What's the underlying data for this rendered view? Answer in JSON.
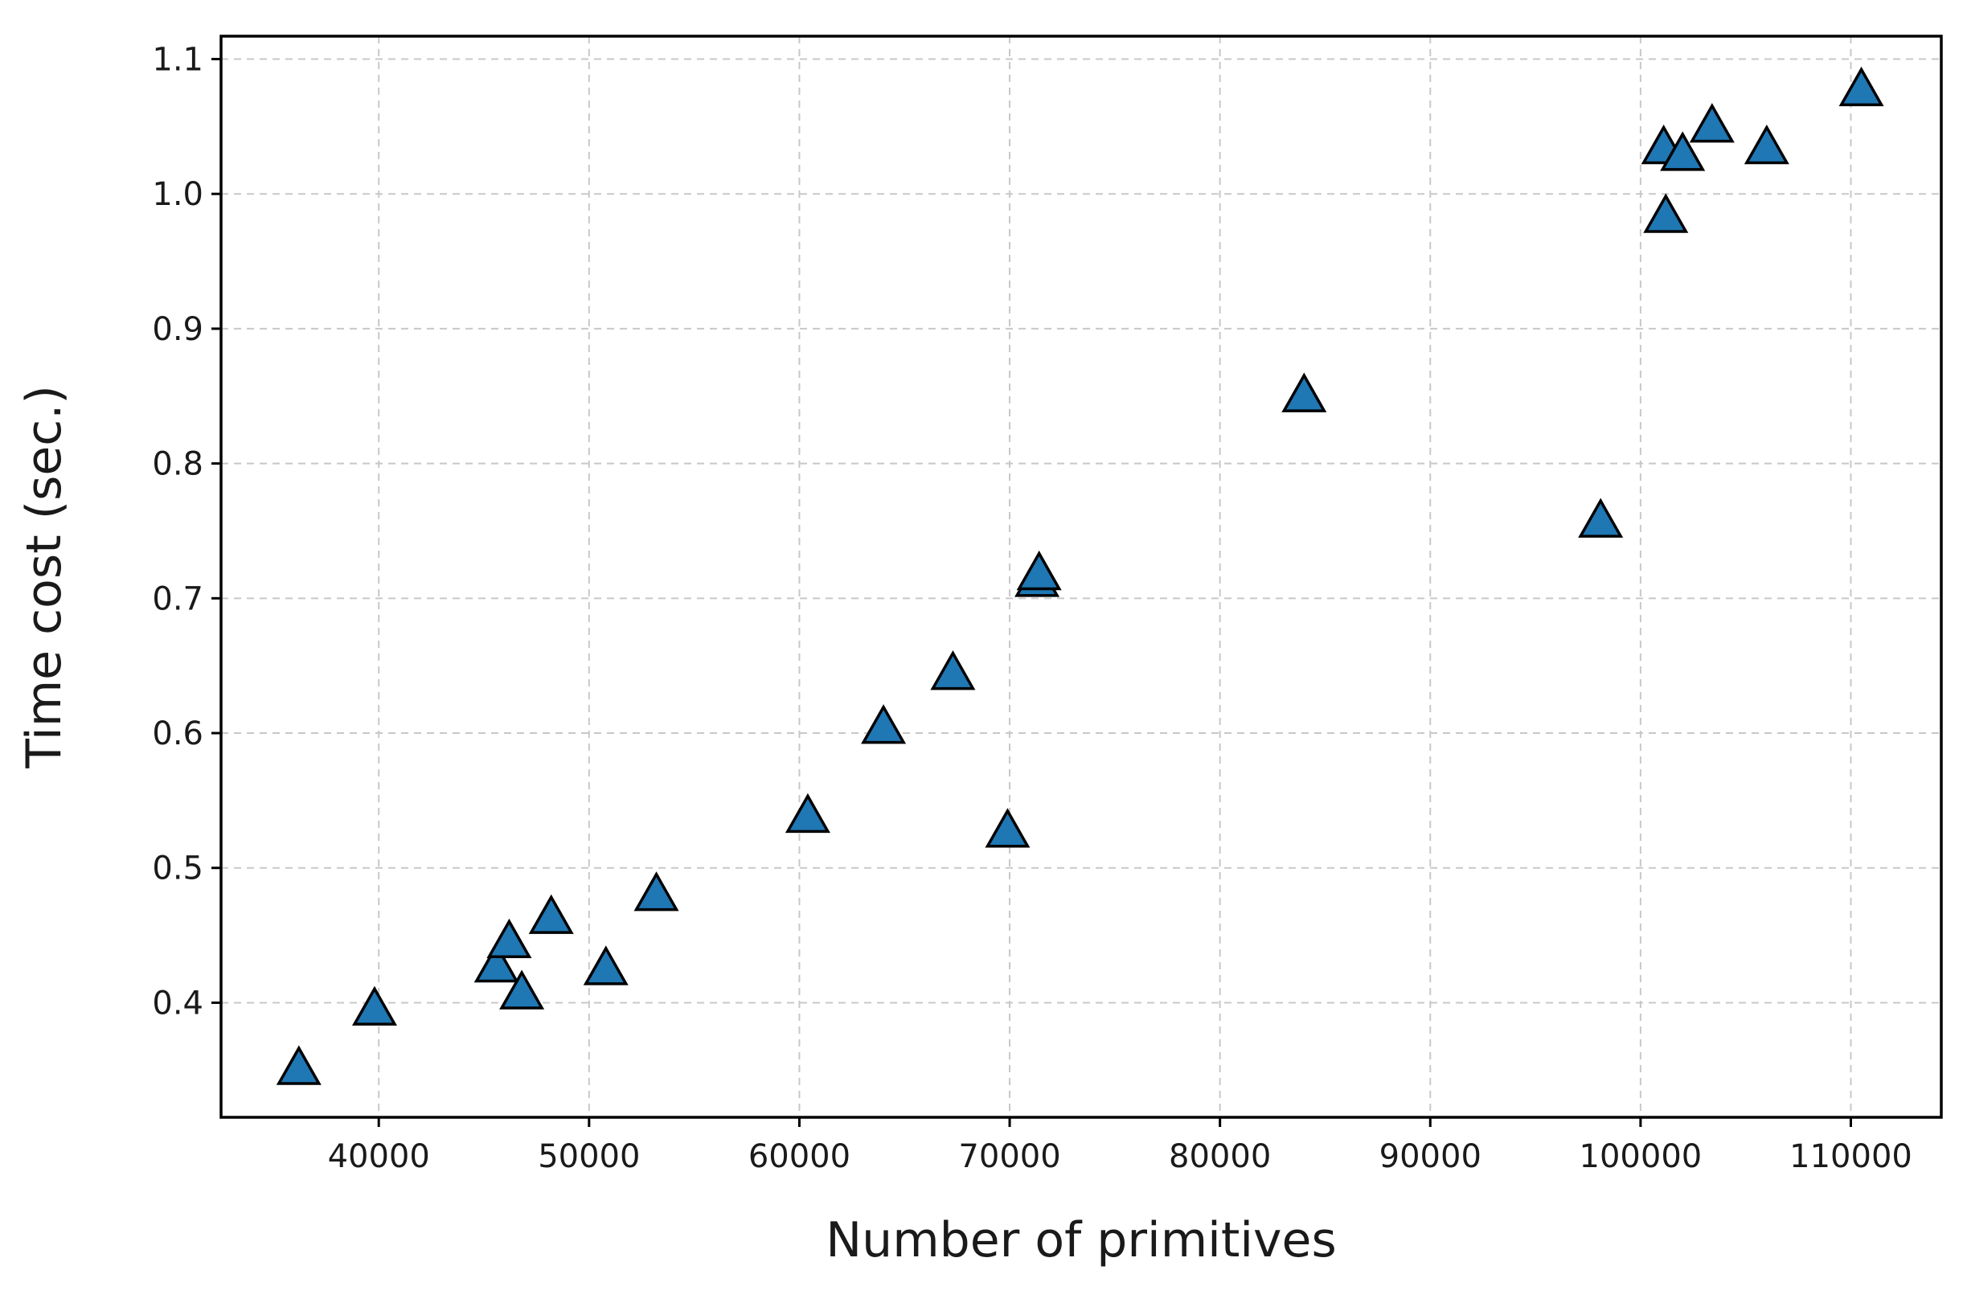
{
  "chart_data": {
    "type": "scatter",
    "title": "",
    "xlabel": "Number of primitives",
    "ylabel": "Time cost (sec.)",
    "xlim": [
      32500,
      114300
    ],
    "ylim": [
      0.315,
      1.117
    ],
    "xticks": [
      40000,
      50000,
      60000,
      70000,
      80000,
      90000,
      100000,
      110000
    ],
    "yticks": [
      0.4,
      0.5,
      0.6,
      0.7,
      0.8,
      0.9,
      1.0,
      1.1
    ],
    "xtick_labels": [
      "40000",
      "50000",
      "60000",
      "70000",
      "80000",
      "90000",
      "100000",
      "110000"
    ],
    "ytick_labels": [
      "0.4",
      "0.5",
      "0.6",
      "0.7",
      "0.8",
      "0.9",
      "1.0",
      "1.1"
    ],
    "grid": true,
    "marker": "triangle",
    "marker_color": "#1f77b4",
    "marker_edge_color": "#000000",
    "points": [
      {
        "x": 36200,
        "y": 0.352
      },
      {
        "x": 39800,
        "y": 0.396
      },
      {
        "x": 45600,
        "y": 0.428
      },
      {
        "x": 46200,
        "y": 0.446
      },
      {
        "x": 46800,
        "y": 0.408
      },
      {
        "x": 48200,
        "y": 0.464
      },
      {
        "x": 50800,
        "y": 0.426
      },
      {
        "x": 53200,
        "y": 0.481
      },
      {
        "x": 60400,
        "y": 0.539
      },
      {
        "x": 64000,
        "y": 0.605
      },
      {
        "x": 67300,
        "y": 0.645
      },
      {
        "x": 69900,
        "y": 0.528
      },
      {
        "x": 71300,
        "y": 0.714
      },
      {
        "x": 71400,
        "y": 0.719
      },
      {
        "x": 84000,
        "y": 0.851
      },
      {
        "x": 98100,
        "y": 0.758
      },
      {
        "x": 101200,
        "y": 0.984
      },
      {
        "x": 101100,
        "y": 1.035
      },
      {
        "x": 102000,
        "y": 1.03
      },
      {
        "x": 103400,
        "y": 1.051
      },
      {
        "x": 106000,
        "y": 1.035
      },
      {
        "x": 110500,
        "y": 1.078
      }
    ]
  }
}
